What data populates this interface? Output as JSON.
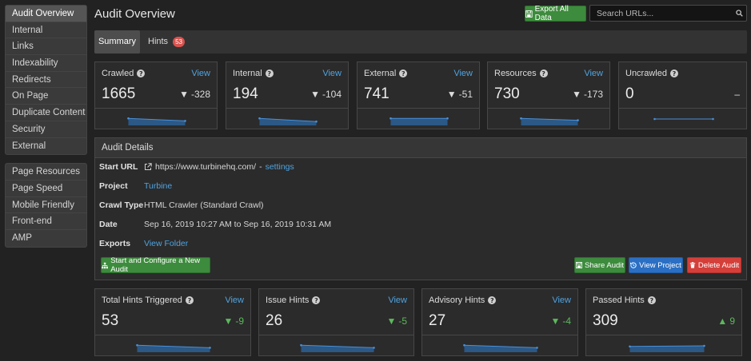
{
  "sidebar": {
    "group1": [
      {
        "label": "Audit Overview",
        "active": true
      },
      {
        "label": "Internal"
      },
      {
        "label": "Links"
      },
      {
        "label": "Indexability"
      },
      {
        "label": "Redirects"
      },
      {
        "label": "On Page"
      },
      {
        "label": "Duplicate Content"
      },
      {
        "label": "Security"
      },
      {
        "label": "External"
      }
    ],
    "group2": [
      {
        "label": "Page Resources"
      },
      {
        "label": "Page Speed"
      },
      {
        "label": "Mobile Friendly"
      },
      {
        "label": "Front-end"
      },
      {
        "label": "AMP"
      }
    ]
  },
  "header": {
    "title": "Audit Overview",
    "export_label": "Export All Data",
    "search_placeholder": "Search URLs..."
  },
  "tabs": {
    "summary": "Summary",
    "hints": "Hints",
    "hints_count": "53"
  },
  "stats": [
    {
      "label": "Crawled",
      "link": "View",
      "value": "1665",
      "delta": "-328",
      "trend": [
        0.55,
        0.35
      ]
    },
    {
      "label": "Internal",
      "link": "View",
      "value": "194",
      "delta": "-104",
      "trend": [
        0.55,
        0.3
      ]
    },
    {
      "label": "External",
      "link": "View",
      "value": "741",
      "delta": "-51",
      "trend": [
        0.55,
        0.55
      ]
    },
    {
      "label": "Resources",
      "link": "View",
      "value": "730",
      "delta": "-173",
      "trend": [
        0.55,
        0.4
      ]
    },
    {
      "label": "Uncrawled",
      "link": "",
      "value": "0",
      "delta": "–",
      "trend": [
        0,
        0
      ]
    }
  ],
  "details": {
    "heading": "Audit Details",
    "start_url_label": "Start URL",
    "start_url": "https://www.turbinehq.com/",
    "start_url_sep": "-",
    "settings_link": "settings",
    "project_label": "Project",
    "project": "Turbine",
    "crawl_type_label": "Crawl Type",
    "crawl_type": "HTML Crawler (Standard Crawl)",
    "date_label": "Date",
    "date": "Sep 16, 2019 10:27 AM to Sep 16, 2019 10:31 AM",
    "exports_label": "Exports",
    "exports_link": "View Folder",
    "start_button": "Start and Configure a New Audit",
    "share_button": "Share Audit",
    "view_project_button": "View Project",
    "delete_button": "Delete Audit"
  },
  "hints": [
    {
      "label": "Total Hints Triggered",
      "link": "View",
      "value": "53",
      "delta": "-9",
      "direction": "down",
      "trend": [
        0.55,
        0.35
      ]
    },
    {
      "label": "Issue Hints",
      "link": "View",
      "value": "26",
      "delta": "-5",
      "direction": "down",
      "trend": [
        0.55,
        0.35
      ]
    },
    {
      "label": "Advisory Hints",
      "link": "View",
      "value": "27",
      "delta": "-4",
      "direction": "down",
      "trend": [
        0.55,
        0.35
      ]
    },
    {
      "label": "Passed Hints",
      "link": "",
      "value": "309",
      "delta": "9",
      "direction": "up",
      "trend": [
        0.45,
        0.5
      ]
    }
  ],
  "colors": {
    "green": "#3d8b3d",
    "blue": "#2a6fc4",
    "red": "#d43f3a",
    "link": "#4fa3e0",
    "spark_fill": "#2b5885",
    "spark_line": "#4a90d9"
  }
}
